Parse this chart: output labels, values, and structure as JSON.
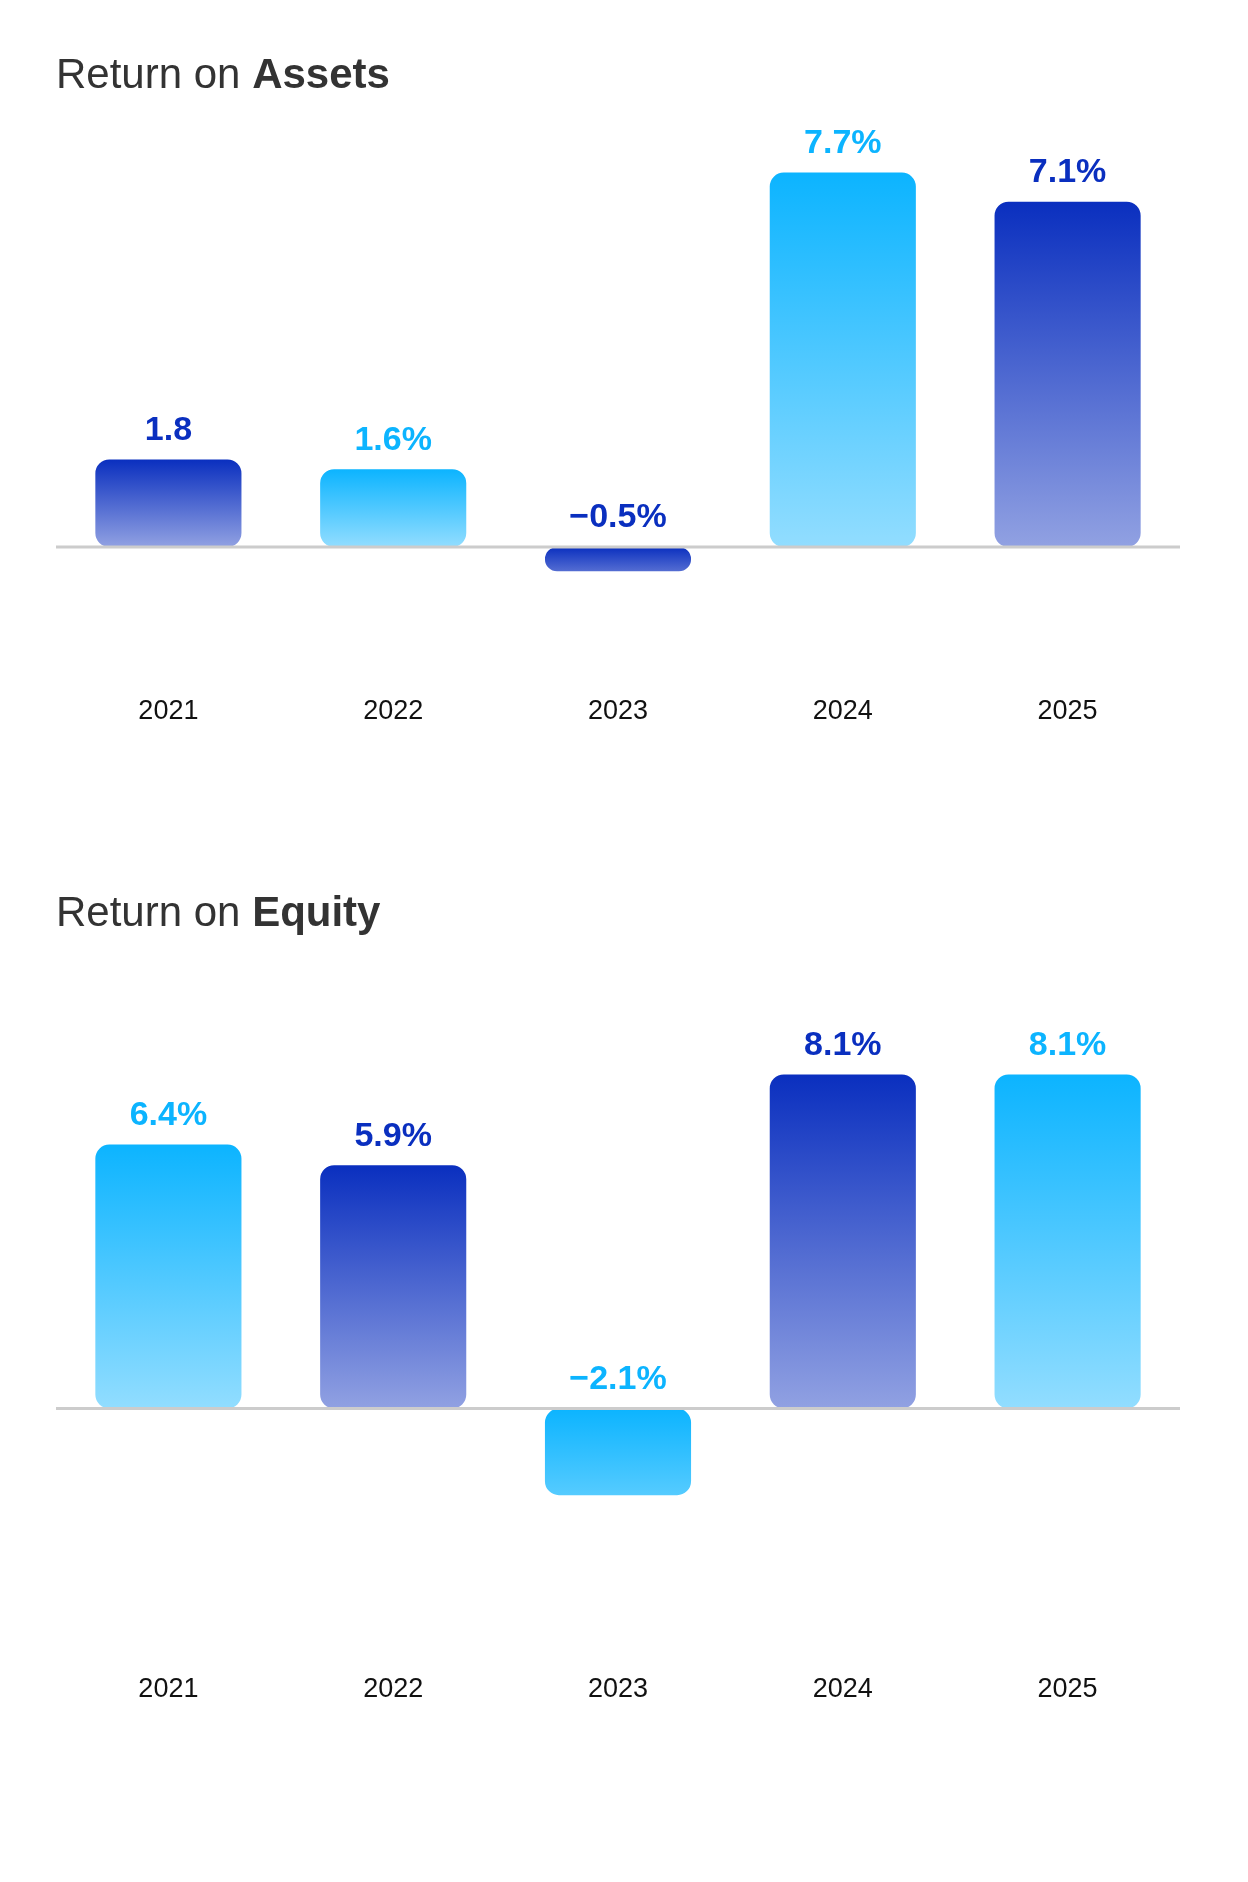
{
  "chart_data": [
    {
      "type": "bar",
      "title": "Return on Assets",
      "categories": [
        "2021",
        "2022",
        "2023",
        "2024",
        "2025"
      ],
      "values": [
        1.8,
        1.6,
        -0.5,
        7.7,
        7.1
      ],
      "value_labels": [
        "1.8",
        "1.6%",
        "−0.5%",
        "7.7%",
        "7.1%"
      ],
      "colors": [
        "#0a2fbf",
        "#0cb4ff",
        "#0a2fbf",
        "#0cb4ff",
        "#0a2fbf"
      ],
      "grid": false,
      "legend": false,
      "tick_labels": "x"
    },
    {
      "type": "bar",
      "title": "Return on Equity",
      "categories": [
        "2021",
        "2022",
        "2023",
        "2024",
        "2025"
      ],
      "values": [
        6.4,
        5.9,
        -2.1,
        8.1,
        8.1
      ],
      "value_labels": [
        "6.4%",
        "5.9%",
        "−2.1%",
        "8.1%",
        "8.1%"
      ],
      "colors": [
        "#0cb4ff",
        "#0a2fbf",
        "#0cb4ff",
        "#0a2fbf",
        "#0cb4ff"
      ],
      "grid": false,
      "legend": false,
      "tick_labels": "x"
    }
  ]
}
